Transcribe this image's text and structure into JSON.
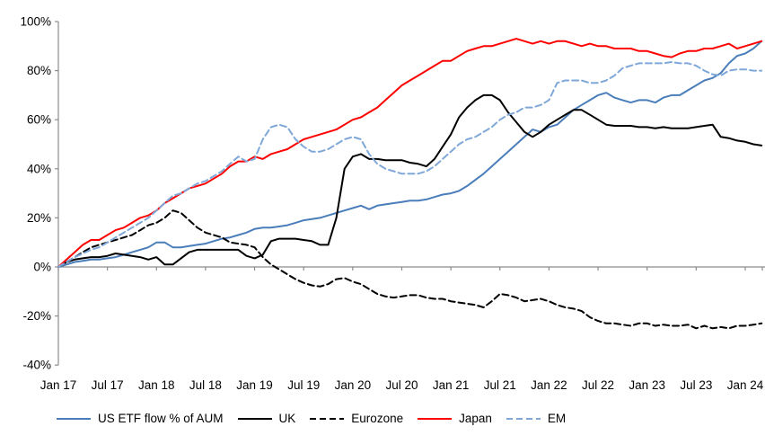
{
  "chart_data": {
    "type": "line",
    "title": "",
    "xlabel": "",
    "ylabel": "",
    "ylim": [
      -40,
      100
    ],
    "grid": "none",
    "legend_position": "bottom",
    "axis_color": "#8c8c8c",
    "x_unit": "monthly, Jan 2017 - Mar 2024",
    "y_ticks": [
      {
        "label": "100%",
        "value": 100
      },
      {
        "label": "80%",
        "value": 80
      },
      {
        "label": "60%",
        "value": 60
      },
      {
        "label": "40%",
        "value": 40
      },
      {
        "label": "20%",
        "value": 20
      },
      {
        "label": "0%",
        "value": 0
      },
      {
        "label": "-20%",
        "value": -20
      },
      {
        "label": "-40%",
        "value": -40
      }
    ],
    "x_ticks": [
      {
        "label": "Jan 17",
        "m": 0
      },
      {
        "label": "Jul 17",
        "m": 6
      },
      {
        "label": "Jan 18",
        "m": 12
      },
      {
        "label": "Jul 18",
        "m": 18
      },
      {
        "label": "Jan 19",
        "m": 24
      },
      {
        "label": "Jul 19",
        "m": 30
      },
      {
        "label": "Jan 20",
        "m": 36
      },
      {
        "label": "Jul 20",
        "m": 42
      },
      {
        "label": "Jan 21",
        "m": 48
      },
      {
        "label": "Jul 21",
        "m": 54
      },
      {
        "label": "Jan 22",
        "m": 60
      },
      {
        "label": "Jul 22",
        "m": 66
      },
      {
        "label": "Jan 23",
        "m": 72
      },
      {
        "label": "Jul 23",
        "m": 78
      },
      {
        "label": "Jan 24",
        "m": 84
      }
    ],
    "series": [
      {
        "name": "US ETF flow % of AUM",
        "color": "#4a7ebb",
        "style": "solid",
        "dash": "",
        "values": [
          0,
          1,
          2,
          2.5,
          3,
          3,
          3.5,
          4,
          5,
          6,
          7,
          8,
          10,
          10,
          8,
          8,
          8.5,
          9,
          9.5,
          10.5,
          11.5,
          12,
          13,
          14,
          15.5,
          16,
          16,
          16.5,
          17,
          18,
          19,
          19.5,
          20,
          21,
          22,
          23,
          24,
          25,
          23.5,
          25,
          25.5,
          26,
          26.5,
          27,
          27,
          27.5,
          28.5,
          29.5,
          30,
          31,
          33,
          35.5,
          38,
          41,
          44,
          47,
          50,
          53,
          56,
          55,
          57,
          58,
          61,
          64,
          66,
          68,
          70,
          71,
          69,
          68,
          67,
          68,
          68,
          67,
          69,
          70,
          70,
          72,
          74,
          76,
          77,
          79,
          83,
          86,
          87,
          89,
          92
        ]
      },
      {
        "name": "UK",
        "color": "#000000",
        "style": "solid",
        "dash": "",
        "values": [
          0,
          2,
          3,
          3.5,
          4,
          4,
          4.5,
          5.5,
          5,
          4.5,
          4,
          3,
          4,
          1,
          1,
          3.5,
          6,
          7,
          7,
          7,
          7,
          7,
          7,
          4.5,
          3.5,
          5,
          10.5,
          11.5,
          11.5,
          11.5,
          11,
          10.5,
          9,
          9,
          20,
          40,
          45,
          46,
          44,
          44,
          43.5,
          43.5,
          43.5,
          42.5,
          42,
          41,
          44,
          49,
          54,
          61,
          65,
          68,
          70,
          70,
          68,
          63,
          59,
          55,
          53,
          55,
          58,
          60,
          62,
          64,
          64,
          62,
          60,
          58,
          57.5,
          57.5,
          57.5,
          57,
          57,
          56.5,
          57,
          56.5,
          56.5,
          56.5,
          57,
          57.5,
          58,
          53,
          52.5,
          51.5,
          51,
          50,
          49.5
        ]
      },
      {
        "name": "Eurozone",
        "color": "#000000",
        "style": "dashed",
        "dash": "7 4",
        "values": [
          0,
          2,
          4,
          6,
          8,
          9,
          10,
          11,
          12,
          13,
          15,
          17,
          18,
          20,
          23,
          22,
          19,
          16,
          14,
          13,
          12,
          10,
          9.5,
          9,
          8,
          4,
          1,
          -1,
          -3,
          -5,
          -6.5,
          -7.5,
          -8,
          -7,
          -5,
          -4.5,
          -6,
          -7,
          -9,
          -11,
          -12,
          -12.5,
          -12,
          -11.5,
          -11.5,
          -12.5,
          -13,
          -13,
          -14,
          -14.5,
          -15,
          -15.5,
          -16.5,
          -14,
          -11,
          -11.5,
          -12.5,
          -14,
          -13.5,
          -13,
          -14,
          -15.5,
          -16.5,
          -17,
          -18,
          -20.5,
          -22,
          -23,
          -23,
          -23.5,
          -24,
          -23,
          -23,
          -24,
          -23.5,
          -24,
          -24,
          -23.5,
          -25,
          -24,
          -25,
          -24.5,
          -25,
          -24,
          -24,
          -23.5,
          -23
        ]
      },
      {
        "name": "Japan",
        "color": "#ff0000",
        "style": "solid",
        "dash": "",
        "values": [
          0,
          3,
          6,
          9,
          11,
          11,
          13,
          15,
          16,
          18,
          20,
          21,
          23,
          26,
          28,
          30,
          32,
          33,
          34,
          36,
          38,
          41,
          43,
          43,
          45,
          44,
          46,
          47,
          48,
          50,
          52,
          53,
          54,
          55,
          56,
          58,
          60,
          61,
          63,
          65,
          68,
          71,
          74,
          76,
          78,
          80,
          82,
          84,
          84,
          86,
          88,
          89,
          90,
          90,
          91,
          92,
          93,
          92,
          91,
          92,
          91,
          92,
          92,
          91,
          90,
          91,
          90,
          90,
          89,
          89,
          89,
          88,
          88,
          87,
          86,
          85.5,
          87,
          88,
          88,
          89,
          89,
          90,
          91,
          89,
          90,
          91,
          92
        ]
      },
      {
        "name": "EM",
        "color": "#7fa8d9",
        "style": "dashed",
        "dash": "7 4",
        "values": [
          0,
          2,
          4,
          5.5,
          7,
          8,
          10,
          12,
          14,
          16,
          18,
          20,
          23,
          26,
          29,
          30,
          32,
          34,
          35,
          37,
          39,
          42,
          45,
          43,
          44,
          52,
          57,
          58,
          57,
          52,
          49,
          47,
          47,
          48,
          50,
          52,
          53,
          52,
          46,
          42,
          40,
          39,
          38,
          38,
          38,
          39,
          41,
          44,
          47,
          50,
          52,
          53,
          55,
          57,
          60,
          62,
          63,
          65,
          65,
          66,
          68,
          75,
          76,
          76,
          76,
          75,
          75,
          76,
          78,
          81,
          82,
          83,
          83,
          83,
          83,
          83.5,
          83,
          83,
          82,
          80,
          78.5,
          78,
          80,
          80.5,
          80.5,
          80,
          80
        ]
      }
    ]
  }
}
